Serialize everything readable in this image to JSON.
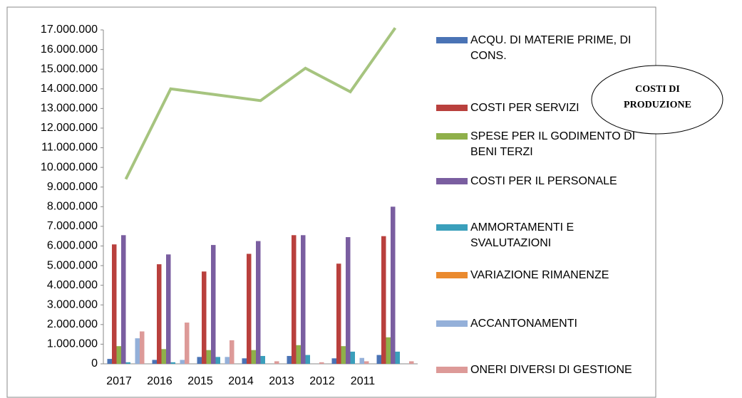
{
  "chart_data": {
    "type": "bar",
    "annotation": "COSTI DI PRODUZIONE",
    "categories": [
      "2017",
      "2016",
      "2015",
      "2014",
      "2013",
      "2012",
      "2011"
    ],
    "ylim": [
      0,
      17000000
    ],
    "yticks": [
      0,
      {
        "value": 1000000,
        "label": "1.000.000"
      },
      {
        "value": 2000000,
        "label": "2.000.000"
      },
      {
        "value": 3000000,
        "label": "3.000.000"
      },
      {
        "value": 4000000,
        "label": "4.000.000"
      },
      {
        "value": 5000000,
        "label": "5.000.000"
      },
      {
        "value": 6000000,
        "label": "6.000.000"
      },
      {
        "value": 7000000,
        "label": "7.000.000"
      },
      {
        "value": 8000000,
        "label": "8.000.000"
      },
      {
        "value": 9000000,
        "label": "9.000.000"
      },
      {
        "value": 10000000,
        "label": "10.000.000"
      },
      {
        "value": 11000000,
        "label": "11.000.000"
      },
      {
        "value": 12000000,
        "label": "12.000.000"
      },
      {
        "value": 13000000,
        "label": "13.000.000"
      },
      {
        "value": 14000000,
        "label": "14.000.000"
      },
      {
        "value": 15000000,
        "label": "15.000.000"
      },
      {
        "value": 16000000,
        "label": "16.000.000"
      },
      {
        "value": 17000000,
        "label": "17.000.000"
      }
    ],
    "series": [
      {
        "name": "ACQU. DI MATERIE PRIME, DI CONS.",
        "color": "#4a73b5",
        "values": [
          250000,
          200000,
          350000,
          280000,
          400000,
          280000,
          450000
        ]
      },
      {
        "name": "COSTI PER SERVIZI",
        "color": "#b9403d",
        "values": [
          6080000,
          5070000,
          4700000,
          5600000,
          6550000,
          5100000,
          6500000
        ]
      },
      {
        "name": "SPESE PER IL GODIMENTO DI BENI TERZI",
        "color": "#8fb04a",
        "values": [
          900000,
          750000,
          700000,
          700000,
          950000,
          900000,
          1350000
        ]
      },
      {
        "name": "COSTI PER IL PERSONALE",
        "color": "#7a5ea0",
        "values": [
          6550000,
          5570000,
          6050000,
          6250000,
          6550000,
          6450000,
          8000000
        ]
      },
      {
        "name": "AMMORTAMENTI E SVALUTAZIONI",
        "color": "#3a9fbb",
        "values": [
          80000,
          80000,
          350000,
          400000,
          450000,
          620000,
          620000
        ]
      },
      {
        "name": "VARIAZIONE RIMANENZE",
        "color": "#ea8a2e",
        "values": [
          0,
          0,
          0,
          0,
          0,
          0,
          0
        ]
      },
      {
        "name": "ACCANTONAMENTI",
        "color": "#94b0d9",
        "values": [
          1300000,
          200000,
          350000,
          0,
          0,
          300000,
          0
        ]
      },
      {
        "name": "ONERI DIVERSI DI GESTIONE",
        "color": "#dd9a98",
        "values": [
          1650000,
          2100000,
          1200000,
          130000,
          80000,
          130000,
          130000
        ]
      },
      {
        "type": "line",
        "color": "#a6c47f",
        "values": [
          9400000,
          14000000,
          13700000,
          13400000,
          15050000,
          13850000,
          17100000
        ]
      }
    ]
  }
}
